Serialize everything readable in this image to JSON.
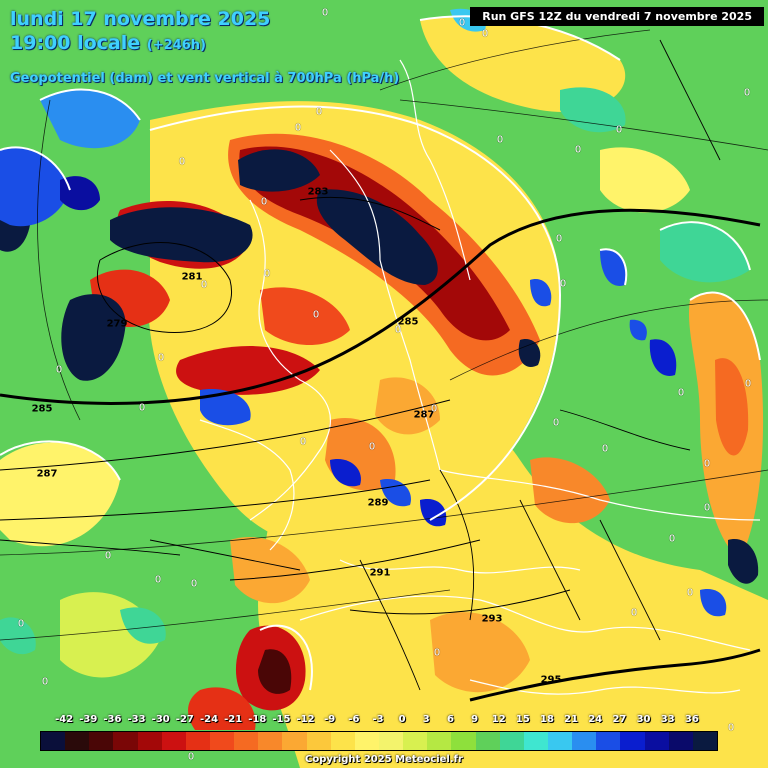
{
  "header": {
    "date": "lundi 17 novembre 2025",
    "time": "19:00 locale",
    "lead": "(+246h)",
    "parameter": "Geopotentiel (dam) et vent vertical à 700hPa (hPa/h)",
    "run": "Run GFS 12Z du vendredi 7 novembre 2025"
  },
  "legend": {
    "ticks": [
      "-42",
      "-39",
      "-36",
      "-33",
      "-30",
      "-27",
      "-24",
      "-21",
      "-18",
      "-15",
      "-12",
      "-9",
      "-6",
      "-3",
      "0",
      "3",
      "6",
      "9",
      "12",
      "15",
      "18",
      "21",
      "24",
      "27",
      "30",
      "33",
      "36"
    ],
    "colors": [
      "#0a0f3a",
      "#2a0a0a",
      "#4a0606",
      "#7a0606",
      "#a30808",
      "#cc1111",
      "#e53015",
      "#f04a1c",
      "#f56a22",
      "#f8882a",
      "#fba833",
      "#fcc83b",
      "#fde34a",
      "#fff36a",
      "#f3f36c",
      "#d8f050",
      "#b5e843",
      "#8ee03c",
      "#5fd05a",
      "#3fd696",
      "#3fe6d0",
      "#39c8f0",
      "#2a8ef0",
      "#1a4ee6",
      "#0a1ecf",
      "#0a0ea0",
      "#0a0a6a",
      "#0a1a40"
    ]
  },
  "contours": {
    "labels": [
      "283",
      "281",
      "279",
      "285",
      "285",
      "287",
      "287",
      "289",
      "291",
      "293",
      "295"
    ]
  },
  "vertical_wind_zero_labels": [
    "0",
    "0",
    "0",
    "0",
    "0",
    "0",
    "0",
    "0",
    "0",
    "0",
    "0",
    "0",
    "0",
    "0",
    "0",
    "0",
    "0",
    "0",
    "0",
    "0",
    "0",
    "0",
    "0",
    "0",
    "0",
    "0",
    "0",
    "0",
    "0",
    "0",
    "0",
    "0",
    "0",
    "0",
    "0",
    "0",
    "0",
    "0",
    "0",
    "0"
  ],
  "footer": {
    "copyright": "Copyright 2025 Meteociel.fr"
  }
}
